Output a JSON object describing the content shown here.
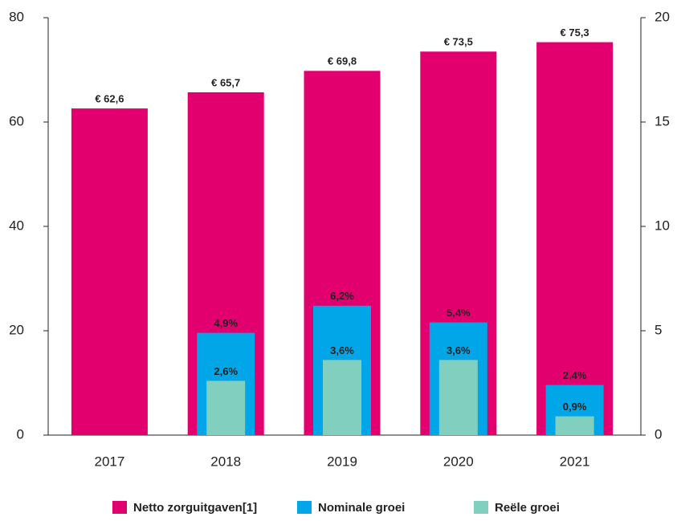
{
  "chart_data": {
    "type": "bar",
    "categories": [
      "2017",
      "2018",
      "2019",
      "2020",
      "2021"
    ],
    "series": [
      {
        "name": "Netto zorguitgaven[1]",
        "color": "#e2006f",
        "values": [
          62.6,
          65.7,
          69.8,
          73.5,
          75.3
        ],
        "value_labels": [
          "€ 62,6",
          "€ 65,7",
          "€ 69,8",
          "€ 73,5",
          "€ 75,3"
        ]
      },
      {
        "name": "Nominale groei",
        "color": "#00a6e8",
        "axis": "y2",
        "values": [
          null,
          4.9,
          6.2,
          5.4,
          2.4
        ],
        "value_labels": [
          null,
          "4,9%",
          "6,2%",
          "5,4%",
          "2,4%"
        ]
      },
      {
        "name": "Reële groei",
        "color": "#80cfbf",
        "axis": "y2",
        "values": [
          null,
          2.6,
          3.6,
          3.6,
          0.9
        ],
        "value_labels": [
          null,
          "2,6%",
          "3,6%",
          "3,6%",
          "0,9%"
        ]
      }
    ],
    "ylim": [
      0,
      80
    ],
    "yticks": [
      0,
      20,
      40,
      60,
      80
    ],
    "y2lim": [
      0,
      20
    ],
    "y2ticks": [
      0,
      5,
      10,
      15,
      20
    ]
  }
}
